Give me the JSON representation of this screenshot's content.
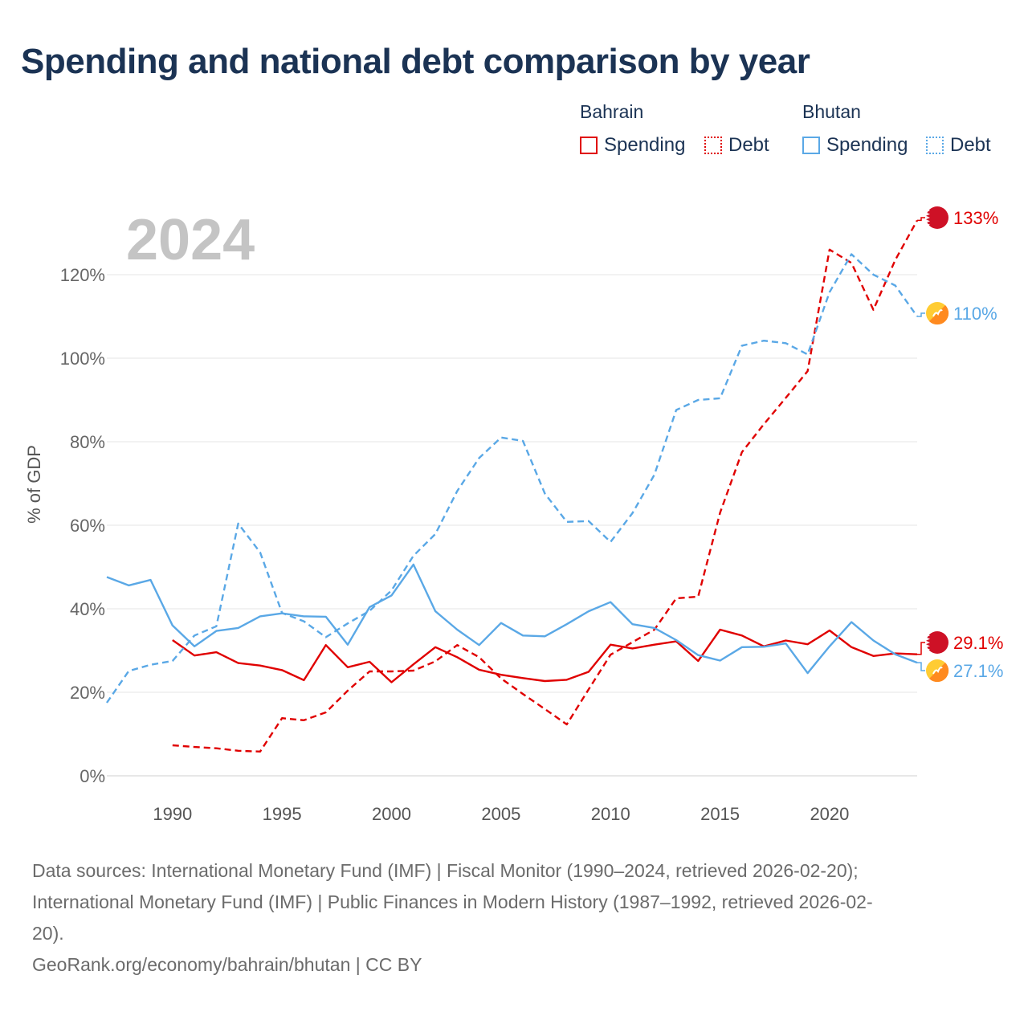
{
  "title": "Spending and national debt comparison by year",
  "legend": {
    "bahrain": "Bahrain",
    "bhutan": "Bhutan",
    "spending": "Spending",
    "debt": "Debt"
  },
  "colors": {
    "bahrain": "#e00000",
    "bhutan": "#5aa8e6"
  },
  "footer": {
    "line1": "Data sources: International Monetary Fund (IMF) | Fiscal Monitor (1990–2024, retrieved 2026-02-20);",
    "line2": "International Monetary Fund (IMF) | Public Finances in Modern History (1987–1992, retrieved 2026-02-",
    "line3": "20).",
    "line4": "GeoRank.org/economy/bahrain/bhutan | CC BY"
  },
  "chart_data": {
    "type": "line",
    "title": "Spending and national debt comparison by year",
    "year_label": "2024",
    "ylabel": "% of GDP",
    "xlim": [
      1987,
      2024
    ],
    "ylim": [
      0,
      135
    ],
    "y_ticks": [
      0,
      20,
      40,
      60,
      80,
      100,
      120
    ],
    "y_tick_labels": [
      "0%",
      "20%",
      "40%",
      "60%",
      "80%",
      "100%",
      "120%"
    ],
    "x_ticks": [
      1990,
      1995,
      2000,
      2005,
      2010,
      2015,
      2020
    ],
    "x_tick_labels": [
      "1990",
      "1995",
      "2000",
      "2005",
      "2010",
      "2015",
      "2020"
    ],
    "series": [
      {
        "name": "Bahrain Spending",
        "country": "bahrain",
        "style": "solid",
        "end_label": "29.1%",
        "x": [
          1990,
          1991,
          1992,
          1993,
          1994,
          1995,
          1996,
          1997,
          1998,
          1999,
          2000,
          2001,
          2002,
          2003,
          2004,
          2005,
          2006,
          2007,
          2008,
          2009,
          2010,
          2011,
          2012,
          2013,
          2014,
          2015,
          2016,
          2017,
          2018,
          2019,
          2020,
          2021,
          2022,
          2023,
          2024
        ],
        "values": [
          32.5,
          28.8,
          29.6,
          27.0,
          26.4,
          25.3,
          22.9,
          31.3,
          26.0,
          27.3,
          22.4,
          26.7,
          30.8,
          28.4,
          25.4,
          24.2,
          23.4,
          22.7,
          23.0,
          24.9,
          31.4,
          30.5,
          31.4,
          32.2,
          27.5,
          35.0,
          33.6,
          31.0,
          32.4,
          31.5,
          34.8,
          30.8,
          28.7,
          29.3,
          29.1
        ]
      },
      {
        "name": "Bahrain Debt",
        "country": "bahrain",
        "style": "dashed",
        "end_label": "133%",
        "x": [
          1990,
          1991,
          1992,
          1993,
          1994,
          1995,
          1996,
          1997,
          1998,
          1999,
          2000,
          2001,
          2002,
          2003,
          2004,
          2005,
          2006,
          2007,
          2008,
          2009,
          2010,
          2011,
          2012,
          2013,
          2014,
          2015,
          2016,
          2017,
          2018,
          2019,
          2020,
          2021,
          2022,
          2023,
          2024
        ],
        "values": [
          7.3,
          6.9,
          6.6,
          6.0,
          5.8,
          13.8,
          13.3,
          15.2,
          20.4,
          25.0,
          25.0,
          25.2,
          27.4,
          31.3,
          28.4,
          23.3,
          19.6,
          16.0,
          12.3,
          20.7,
          29.0,
          32.0,
          35.0,
          42.5,
          42.9,
          63.0,
          77.5,
          84.2,
          90.5,
          96.9,
          126.0,
          122.8,
          111.6,
          123.5,
          133.0
        ]
      },
      {
        "name": "Bhutan Spending",
        "country": "bhutan",
        "style": "solid",
        "end_label": "27.1%",
        "x": [
          1987,
          1988,
          1989,
          1990,
          1991,
          1992,
          1993,
          1994,
          1995,
          1996,
          1997,
          1998,
          1999,
          2000,
          2001,
          2002,
          2003,
          2004,
          2005,
          2006,
          2007,
          2008,
          2009,
          2010,
          2011,
          2012,
          2013,
          2014,
          2015,
          2016,
          2017,
          2018,
          2019,
          2020,
          2021,
          2022,
          2023,
          2024
        ],
        "values": [
          47.6,
          45.6,
          46.9,
          36.0,
          31.0,
          34.7,
          35.4,
          38.2,
          38.9,
          38.2,
          38.1,
          31.4,
          40.4,
          43.2,
          50.6,
          39.4,
          35.0,
          31.3,
          36.6,
          33.6,
          33.4,
          36.3,
          39.4,
          41.6,
          36.3,
          35.4,
          32.5,
          28.9,
          27.6,
          30.8,
          30.9,
          31.7,
          24.6,
          31.0,
          36.8,
          32.4,
          29.1,
          27.1
        ]
      },
      {
        "name": "Bhutan Debt",
        "country": "bhutan",
        "style": "dashed",
        "end_label": "110%",
        "x": [
          1987,
          1988,
          1989,
          1990,
          1991,
          1992,
          1993,
          1994,
          1995,
          1996,
          1997,
          1998,
          1999,
          2000,
          2001,
          2002,
          2003,
          2004,
          2005,
          2006,
          2007,
          2008,
          2009,
          2010,
          2011,
          2012,
          2013,
          2014,
          2015,
          2016,
          2017,
          2018,
          2019,
          2020,
          2021,
          2022,
          2023,
          2024
        ],
        "values": [
          17.5,
          25.1,
          26.6,
          27.5,
          33.6,
          35.8,
          60.4,
          53.5,
          39.0,
          37.0,
          33.2,
          36.5,
          39.5,
          44.4,
          52.7,
          57.9,
          68.2,
          76.1,
          81.0,
          80.2,
          67.6,
          60.8,
          61.0,
          56.0,
          62.9,
          72.1,
          87.6,
          90.0,
          90.4,
          103.0,
          104.2,
          103.6,
          100.9,
          115.8,
          124.9,
          120.0,
          117.4,
          110.0
        ]
      }
    ]
  }
}
